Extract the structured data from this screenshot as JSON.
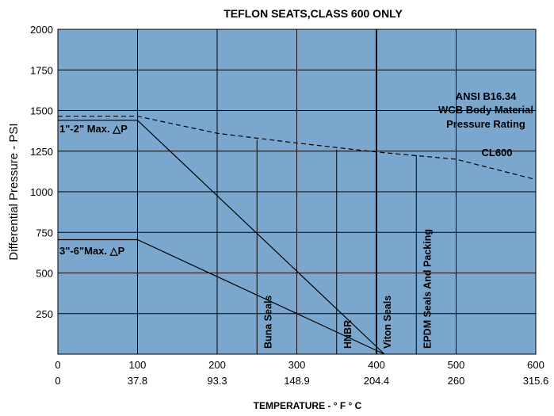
{
  "chart_data": {
    "type": "line",
    "title": "TEFLON SEATS,CLASS 600 ONLY",
    "ylabel": "Differential Pressure - PSI",
    "xlabel": "TEMPERATURE - ° F ° C",
    "xlim": [
      0,
      600
    ],
    "ylim": [
      0,
      2000
    ],
    "x_ticks_f": [
      "0",
      "100",
      "200",
      "300",
      "400",
      "500",
      "600"
    ],
    "x_ticks_c": [
      "0",
      "37.8",
      "93.3",
      "148.9",
      "204.4",
      "260",
      "315.6"
    ],
    "y_ticks": [
      "250",
      "500",
      "750",
      "1000",
      "1250",
      "1500",
      "1750",
      "2000"
    ],
    "grid": true,
    "plot_color": "#7ba7cf",
    "series": [
      {
        "name": "1\"-2\" Max. △P",
        "style": "solid",
        "points": [
          [
            0,
            1440
          ],
          [
            100,
            1440
          ],
          [
            410,
            0
          ]
        ]
      },
      {
        "name": "3\"-6\"Max. △P",
        "style": "solid",
        "points": [
          [
            0,
            705
          ],
          [
            100,
            705
          ],
          [
            410,
            0
          ]
        ]
      },
      {
        "name": "CL600",
        "style": "dashed",
        "points": [
          [
            0,
            1465
          ],
          [
            100,
            1465
          ],
          [
            200,
            1360
          ],
          [
            300,
            1300
          ],
          [
            400,
            1245
          ],
          [
            500,
            1200
          ],
          [
            600,
            1075
          ]
        ]
      }
    ],
    "seal_limits": [
      {
        "label": "Buna Seals",
        "x": 250,
        "y_top": 1320
      },
      {
        "label": "HNBR",
        "x": 350,
        "y_top": 1260
      },
      {
        "label": "Viton Seals",
        "x": 400,
        "y_top": 2000
      },
      {
        "label": "EPDM Seals And Packing",
        "x": 450,
        "y_top": 1225
      }
    ],
    "annotations": {
      "ansi": [
        "ANSI B16.34",
        "WCB Body Material",
        "Pressure Rating"
      ],
      "cl600": "CL600",
      "small_valve": "1\"-2\" Max. △P",
      "large_valve": "3\"-6\"Max. △P"
    }
  }
}
